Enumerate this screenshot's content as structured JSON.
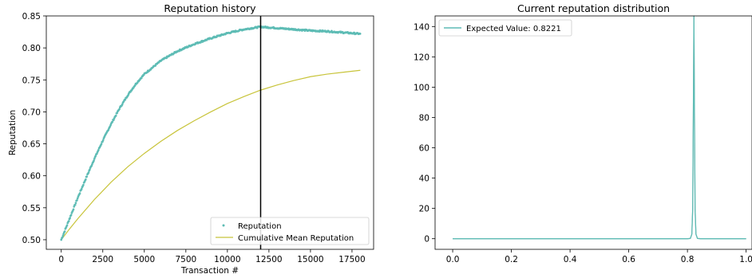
{
  "chart_data": [
    {
      "type": "line",
      "title": "Reputation history",
      "xlabel": "Transaction #",
      "ylabel": "Reputation",
      "xlim": [
        -900,
        18800
      ],
      "ylim": [
        0.485,
        0.85
      ],
      "xticks": [
        0,
        2500,
        5000,
        7500,
        10000,
        12500,
        15000,
        17500
      ],
      "yticks": [
        0.5,
        0.55,
        0.6,
        0.65,
        0.7,
        0.75,
        0.8,
        0.85
      ],
      "xtick_labels": [
        "0",
        "2500",
        "5000",
        "7500",
        "10000",
        "12500",
        "15000",
        "17500"
      ],
      "ytick_labels": [
        "0.50",
        "0.55",
        "0.60",
        "0.65",
        "0.70",
        "0.75",
        "0.80",
        "0.85"
      ],
      "vline_x": 12000,
      "legend_position": "lower-right",
      "series": [
        {
          "name": "Reputation",
          "style": "dots",
          "color": "#5ebcb5",
          "x": [
            0,
            500,
            1000,
            1500,
            2000,
            2500,
            3000,
            3500,
            4000,
            4500,
            5000,
            6000,
            7000,
            8000,
            9000,
            10000,
            11000,
            12000,
            13000,
            14000,
            15000,
            16000,
            17000,
            18000
          ],
          "y": [
            0.5,
            0.533,
            0.566,
            0.597,
            0.627,
            0.655,
            0.681,
            0.705,
            0.726,
            0.744,
            0.759,
            0.78,
            0.795,
            0.806,
            0.815,
            0.823,
            0.829,
            0.833,
            0.831,
            0.829,
            0.827,
            0.826,
            0.824,
            0.822
          ]
        },
        {
          "name": "Cumulative Mean Reputation",
          "style": "line",
          "color": "#c8c43a",
          "x": [
            0,
            500,
            1000,
            2000,
            3000,
            4000,
            5000,
            6000,
            7000,
            8000,
            9000,
            10000,
            11000,
            12000,
            13000,
            14000,
            15000,
            16000,
            17000,
            18000
          ],
          "y": [
            0.5,
            0.517,
            0.533,
            0.563,
            0.59,
            0.614,
            0.635,
            0.654,
            0.671,
            0.686,
            0.7,
            0.713,
            0.724,
            0.734,
            0.742,
            0.749,
            0.755,
            0.759,
            0.762,
            0.765
          ]
        }
      ]
    },
    {
      "type": "line",
      "title": "Current reputation distribution",
      "xlabel": "",
      "ylabel": "",
      "xlim": [
        -0.06,
        1.02
      ],
      "ylim": [
        -7,
        147
      ],
      "xticks": [
        0.0,
        0.2,
        0.4,
        0.6,
        0.8,
        1.0
      ],
      "yticks": [
        0,
        20,
        40,
        60,
        80,
        100,
        120,
        140
      ],
      "xtick_labels": [
        "0.0",
        "0.2",
        "0.4",
        "0.6",
        "0.8",
        "1.0"
      ],
      "ytick_labels": [
        "0",
        "20",
        "40",
        "60",
        "80",
        "100",
        "120",
        "140"
      ],
      "legend_position": "upper-left",
      "series": [
        {
          "name": "Expected Value: 0.8221",
          "color": "#5ebcb5",
          "x": [
            0.0,
            0.8,
            0.81,
            0.815,
            0.818,
            0.82,
            0.8221,
            0.824,
            0.826,
            0.829,
            0.834,
            0.845,
            1.0
          ],
          "y": [
            0,
            0,
            0.2,
            3,
            20,
            80,
            147,
            80,
            20,
            3,
            0.2,
            0,
            0
          ]
        }
      ]
    }
  ]
}
